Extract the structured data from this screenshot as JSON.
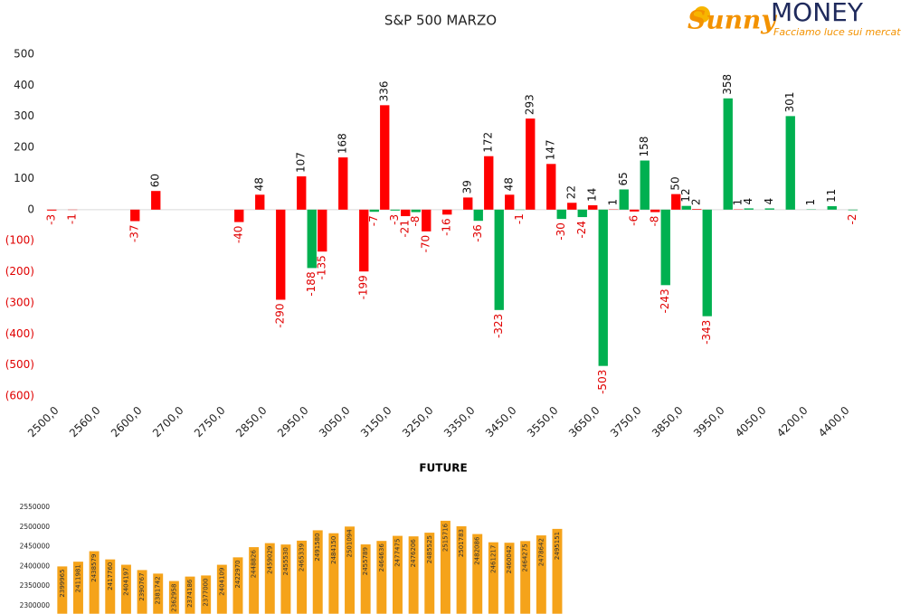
{
  "logo": {
    "brand": "Sunny",
    "name": "MONEY",
    "tagline": "Facciamo luce sui mercati"
  },
  "chart_data": [
    {
      "type": "bar",
      "title": "S&P 500 MARZO",
      "categories": [
        "2500,0",
        null,
        "2560,0",
        null,
        "2600,0",
        null,
        "2700,0",
        null,
        "2750,0",
        null,
        "2850,0",
        null,
        "2950,0",
        null,
        "3050,0",
        null,
        "3150,0",
        null,
        "3250,0",
        null,
        "3350,0",
        null,
        "3450,0",
        null,
        "3550,0",
        null,
        "3650,0",
        null,
        "3750,0",
        null,
        "3850,0",
        null,
        "3950,0",
        null,
        "4050,0",
        null,
        "4200,0",
        null,
        "4400,0"
      ],
      "series": [
        {
          "color": "#ff0000",
          "values": [
            -3,
            -1,
            null,
            null,
            -37,
            60,
            null,
            null,
            null,
            -40,
            48,
            -290,
            107,
            -135,
            168,
            -199,
            336,
            -21,
            -70,
            -16,
            39,
            172,
            48,
            293,
            147,
            22,
            14,
            1,
            -6,
            -8,
            50,
            2,
            null,
            1,
            null,
            null,
            null,
            null,
            null
          ]
        },
        {
          "color": "#00b050",
          "values": [
            null,
            null,
            null,
            null,
            null,
            null,
            null,
            null,
            null,
            null,
            null,
            null,
            -188,
            null,
            null,
            -7,
            -3,
            -8,
            null,
            null,
            -36,
            -323,
            -1,
            null,
            -30,
            -24,
            -503,
            65,
            158,
            -243,
            12,
            -343,
            358,
            4,
            4,
            301,
            1,
            11,
            -2
          ]
        }
      ],
      "ylim": [
        -600,
        500
      ],
      "yticks": [
        500,
        400,
        300,
        200,
        100,
        0,
        {
          "value": -100,
          "label": "(100)"
        },
        {
          "value": -200,
          "label": "(200)"
        },
        {
          "value": -300,
          "label": "(300)"
        },
        {
          "value": -400,
          "label": "(400)"
        },
        {
          "value": -500,
          "label": "(500)"
        },
        {
          "value": -600,
          "label": "(600)"
        }
      ]
    },
    {
      "type": "bar",
      "title": "FUTURE",
      "color": "#f5a31a",
      "values": [
        2399965,
        2411981,
        2438579,
        2417760,
        2404197,
        2390767,
        2381742,
        2362958,
        2374186,
        2377000,
        2404109,
        2422970,
        2448826,
        2459029,
        2455530,
        2465339,
        2491580,
        2484150,
        2501094,
        2455789,
        2464636,
        2477475,
        2476206,
        2485525,
        2515716,
        2501783,
        2482086,
        2461217,
        2460042,
        2464275,
        2478642,
        2495151
      ],
      "ylim": [
        2280000,
        2560000
      ],
      "yticks": [
        2300000,
        2350000,
        2400000,
        2450000,
        2500000,
        2550000
      ]
    }
  ]
}
